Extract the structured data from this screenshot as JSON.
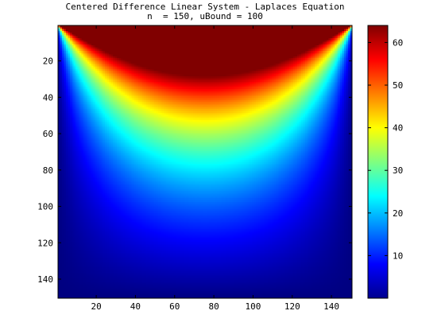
{
  "chart_data": {
    "type": "heatmap",
    "title": [
      "Centered Difference Linear System - Laplaces Equation",
      "n  = 150, uBound = 100"
    ],
    "grid_size": 150,
    "boundary_value": 100,
    "model": "steady-state Laplace solution, top boundary = uBound, other boundaries = 0",
    "colormap": "jet",
    "clim": [
      0,
      64
    ],
    "x": {
      "range": [
        1,
        150
      ],
      "ticks": [
        20,
        40,
        60,
        80,
        100,
        120,
        140
      ]
    },
    "y": {
      "range": [
        1,
        150
      ],
      "reversed": true,
      "ticks": [
        20,
        40,
        60,
        80,
        100,
        120,
        140
      ]
    },
    "colorbar": {
      "ticks": [
        10,
        20,
        30,
        40,
        50,
        60
      ]
    }
  }
}
